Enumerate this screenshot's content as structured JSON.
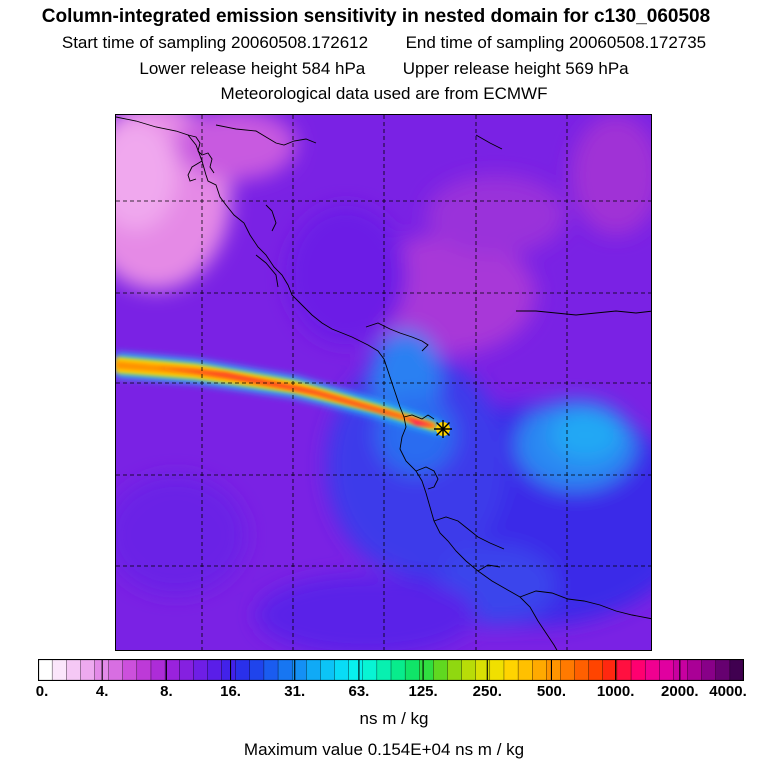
{
  "title": "Column-integrated emission sensitivity in nested domain for c130_060508",
  "sampling": {
    "start_label": "Start time of sampling",
    "start_value": "20060508.172612",
    "end_label": "End time of sampling",
    "end_value": "20060508.172735"
  },
  "release": {
    "lower_label": "Lower release height",
    "lower_value": "584 hPa",
    "upper_label": "Upper release height",
    "upper_value": "569 hPa"
  },
  "met_note": "Meteorological data used are from ECMWF",
  "colorbar": {
    "tick_labels": [
      "0.",
      "4.",
      "8.",
      "16.",
      "31.",
      "63.",
      "125.",
      "250.",
      "500.",
      "1000.",
      "2000.",
      "4000."
    ],
    "units": "ns m / kg",
    "colors": [
      "#ffffff",
      "#fbe6fb",
      "#f5c8f5",
      "#eeaaf0",
      "#e38ae8",
      "#d86ee2",
      "#cc50dc",
      "#bd3ad8",
      "#ad2cd8",
      "#9a22dc",
      "#8520e0",
      "#6e1ee6",
      "#5a1ee8",
      "#4222ea",
      "#2a30ea",
      "#1f44ec",
      "#1a5cf0",
      "#1776f2",
      "#1490f4",
      "#10aaf6",
      "#0cc4f6",
      "#08dcf6",
      "#08f0ee",
      "#08f4d4",
      "#08f0b0",
      "#08ec8c",
      "#10e468",
      "#30de40",
      "#60d820",
      "#90d810",
      "#b8dc08",
      "#d8e004",
      "#f0e000",
      "#ffd400",
      "#ffc000",
      "#ffaa00",
      "#ff9400",
      "#ff7a00",
      "#ff6000",
      "#ff4400",
      "#ff2810",
      "#ff1040",
      "#ff0070",
      "#f00090",
      "#e000a0",
      "#c800a0",
      "#aa0096",
      "#880088",
      "#660070",
      "#400050"
    ]
  },
  "max_value_label": "Maximum value",
  "max_value": "0.154E+04 ns m / kg",
  "map": {
    "release_marker": "release-point-star"
  }
}
